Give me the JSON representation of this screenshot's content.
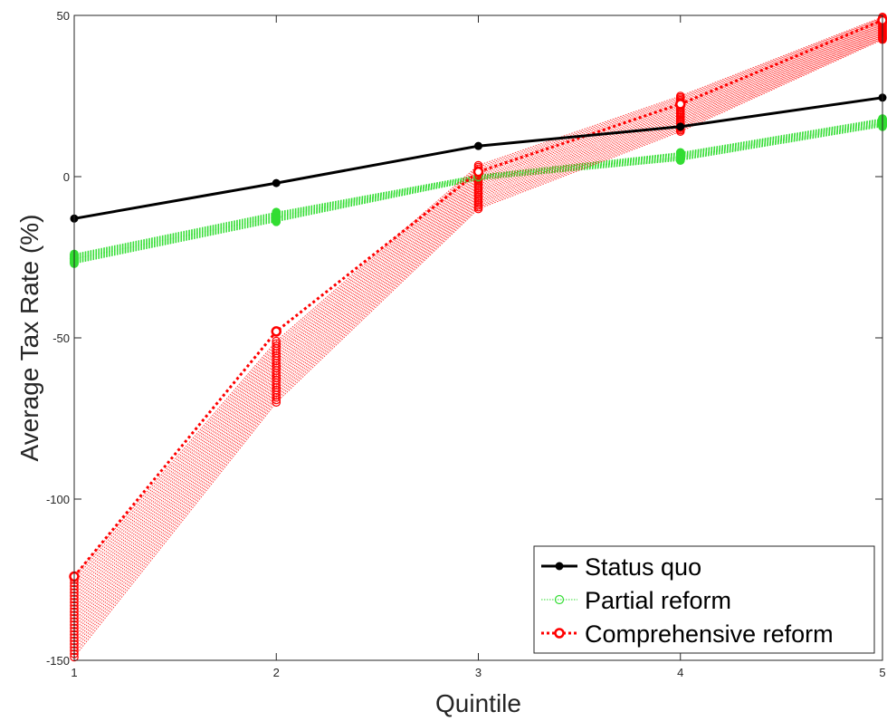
{
  "chart_data": {
    "type": "line",
    "xlabel": "Quintile",
    "ylabel": "Average Tax Rate (%)",
    "x": [
      1,
      2,
      3,
      4,
      5
    ],
    "xlim": [
      1,
      5
    ],
    "ylim": [
      -150,
      50
    ],
    "xticks": [
      1,
      2,
      3,
      4,
      5
    ],
    "yticks": [
      -150,
      -100,
      -50,
      0,
      50
    ],
    "grid": false,
    "legend_position": "bottom-right",
    "series": [
      {
        "name": "Status quo",
        "color": "#000000",
        "style": "solid-dot",
        "values": [
          -13,
          -2,
          9.5,
          15.5,
          24.5
        ]
      },
      {
        "name": "Partial reform",
        "color": "#33dd33",
        "style": "dotted-circle",
        "values": [
          -25.5,
          -12.5,
          0,
          6,
          16.5
        ],
        "band": {
          "lower": [
            -27,
            -14,
            -1,
            5,
            15.5
          ],
          "upper": [
            -24,
            -11,
            0.5,
            7.5,
            18
          ]
        }
      },
      {
        "name": "Comprehensive reform",
        "color": "#ff0000",
        "style": "dotted-circle",
        "values": [
          -124,
          -48,
          1.5,
          22.5,
          48.5
        ],
        "band": {
          "lower": [
            -149,
            -70,
            -10,
            14,
            42.5
          ],
          "upper": [
            -124,
            -51,
            3.5,
            25,
            49.5
          ]
        }
      }
    ]
  }
}
